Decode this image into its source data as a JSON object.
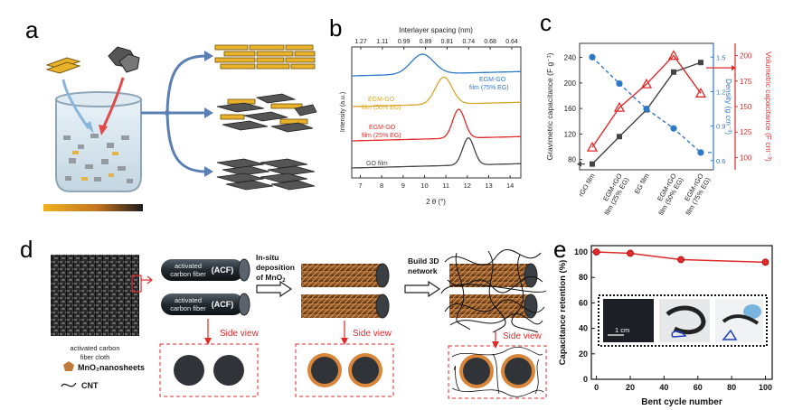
{
  "panel_labels": {
    "a": "a",
    "b": "b",
    "c": "c",
    "d": "d",
    "e": "e"
  },
  "colors": {
    "blue": "#2e78c8",
    "red": "#e02a2a",
    "gold": "#e8b22a",
    "dark": "#444444",
    "brown": "#c07a3a"
  },
  "panel_d": {
    "acf_label_1a": "activated",
    "acf_label_1b": "carbon fiber",
    "acf_tag": "(ACF)",
    "acf_label_2a": "activated",
    "acf_label_2b": "carbon fiber",
    "insitu_1": "In-situ",
    "insitu_2": "deposition",
    "insitu_3": "of MnO",
    "build_1": "Build 3D",
    "build_2": "network",
    "side_view": "Side view",
    "cloth_1": "activated carbon",
    "cloth_2": "fiber cloth",
    "legend_mno2": "MnO₂nanosheets",
    "legend_cnt": "CNT"
  },
  "chart_data": [
    {
      "id": "b",
      "type": "line",
      "xlabel": "2 θ (°)",
      "ylabel": "Intensity (a.u.)",
      "top_axis_label": "Interlayer spacing (nm)",
      "top_ticks": [
        "1.27",
        "1.11",
        "0.99",
        "0.89",
        "0.81",
        "0.74",
        "0.68",
        "0.64"
      ],
      "x_ticks": [
        7,
        8,
        9,
        10,
        11,
        12,
        13,
        14
      ],
      "xlim": [
        6.6,
        14.5
      ],
      "series": [
        {
          "name": "GO film",
          "color": "#444444",
          "peak_x": 12.05,
          "label": "GO film"
        },
        {
          "name": "EGM-GO film (25% EG)",
          "color": "#e02a2a",
          "peak_x": 11.6,
          "label_1": "EGM-GO",
          "label_2": "film (25% EG)"
        },
        {
          "name": "EGM-GO film (50% EG)",
          "color": "#d9a52a",
          "peak_x": 10.9,
          "label_1": "EGM-GO",
          "label_2": "film (50% EG)"
        },
        {
          "name": "EGM-GO film (75% EG)",
          "color": "#2e78c8",
          "peak_x": 9.9,
          "label_1": "EGM-GO",
          "label_2": "film (75% EG)"
        }
      ]
    },
    {
      "id": "c",
      "type": "line",
      "categories": [
        "rGO film",
        "EGM-rGO film (25% EG)",
        "EG film",
        "EGM-rGO film (50% EG)",
        "EGM-rGO film (75% EG)"
      ],
      "category_lines": [
        [
          "rGO film"
        ],
        [
          "EGM-rGO",
          "film (25% EG)"
        ],
        [
          "EG film"
        ],
        [
          "EGM-rGO",
          "film (50% EG)"
        ],
        [
          "EGM-rGO",
          "film (75% EG)"
        ]
      ],
      "y_left_label": "Gravimetric capacitance (F g⁻¹)",
      "y_left_ticks": [
        80,
        120,
        160,
        200,
        240
      ],
      "y_left_lim": [
        64,
        262
      ],
      "y_right1_label": "Density (g cm⁻³)",
      "y_right1_ticks": [
        "0.6",
        "0.9",
        "1.2",
        "1.5"
      ],
      "y_right1_lim": [
        0.52,
        1.62
      ],
      "y_right2_label": "Volumetric capacitance (F cm⁻³)",
      "y_right2_ticks": [
        100,
        125,
        150,
        175,
        200
      ],
      "y_right2_lim": [
        88,
        212
      ],
      "series": [
        {
          "name": "Gravimetric capacitance",
          "axis": "left",
          "color": "#444444",
          "values": [
            73,
            116,
            158,
            217,
            232
          ]
        },
        {
          "name": "Density",
          "axis": "right1",
          "color": "#2e78c8",
          "values": [
            1.5,
            1.27,
            1.05,
            0.88,
            0.67
          ]
        },
        {
          "name": "Volumetric capacitance",
          "axis": "right2",
          "color": "#e02a2a",
          "values": [
            110,
            149,
            172,
            200,
            163
          ]
        }
      ]
    },
    {
      "id": "e",
      "type": "line",
      "xlabel": "Bent cycle number",
      "ylabel": "Capacitance retention (%)",
      "x_ticks": [
        0,
        20,
        40,
        60,
        80,
        100
      ],
      "y_ticks": [
        0,
        20,
        40,
        60,
        80,
        100
      ],
      "xlim": [
        -3,
        104
      ],
      "ylim": [
        0,
        105
      ],
      "inset_label": "1 cm",
      "series": [
        {
          "name": "Capacitance retention",
          "color": "#e02a2a",
          "x": [
            0,
            20,
            50,
            100
          ],
          "y": [
            100,
            99,
            94,
            92
          ]
        }
      ]
    }
  ]
}
